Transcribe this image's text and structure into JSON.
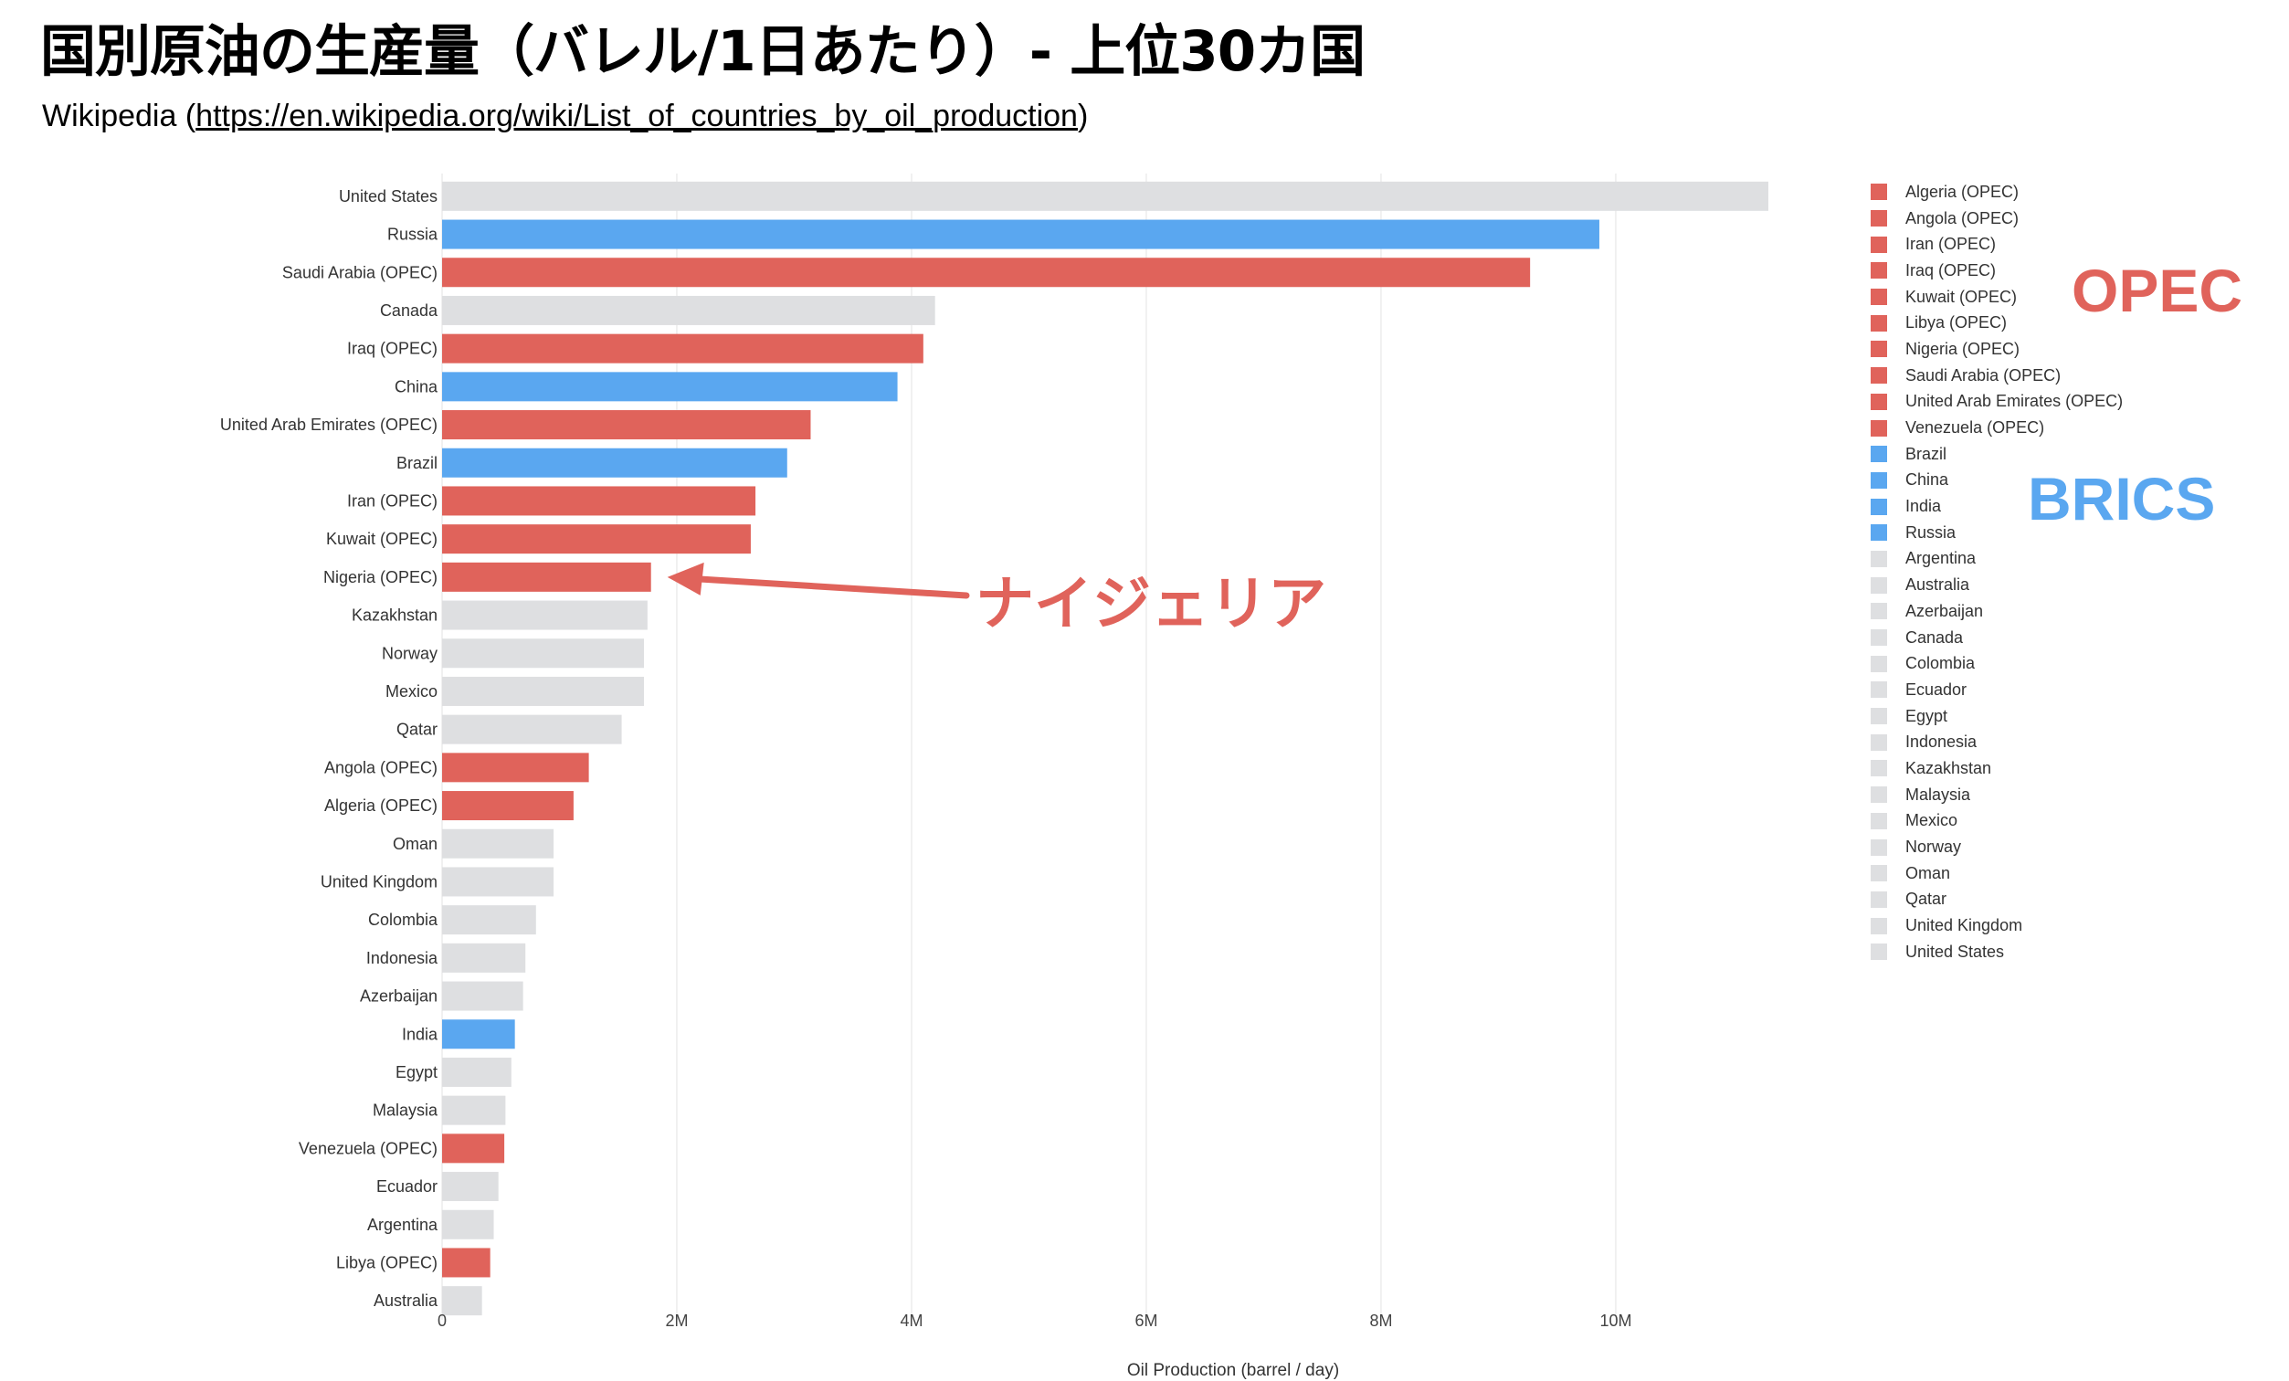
{
  "title": "国別原油の生産量（バレル/1日あたり）- 上位30カ国",
  "source": {
    "prefix": "Wikipedia (",
    "link": "https://en.wikipedia.org/wiki/List_of_countries_by_oil_production",
    "suffix": ")"
  },
  "colors": {
    "opec": "#e0635b",
    "brics": "#5aa7f0",
    "other": "#dedfe1"
  },
  "group_labels": {
    "opec": "OPEC",
    "brics": "BRICS"
  },
  "annotation": {
    "text": "ナイジェリア",
    "target": "Nigeria (OPEC)"
  },
  "chart_data": {
    "type": "bar",
    "orientation": "horizontal",
    "xlabel": "Oil Production (barrel / day)",
    "ylabel": "",
    "xlim": [
      0,
      11300000
    ],
    "x_ticks": [
      0,
      2000000,
      4000000,
      6000000,
      8000000,
      10000000
    ],
    "x_tick_labels": [
      "0",
      "2M",
      "4M",
      "6M",
      "8M",
      "10M"
    ],
    "grid": true,
    "legend_position": "right",
    "bars": [
      {
        "category": "United States",
        "value": 11300000,
        "group": "other"
      },
      {
        "category": "Russia",
        "value": 9860000,
        "group": "brics"
      },
      {
        "category": "Saudi Arabia (OPEC)",
        "value": 9270000,
        "group": "opec"
      },
      {
        "category": "Canada",
        "value": 4200000,
        "group": "other"
      },
      {
        "category": "Iraq (OPEC)",
        "value": 4100000,
        "group": "opec"
      },
      {
        "category": "China",
        "value": 3880000,
        "group": "brics"
      },
      {
        "category": "United Arab Emirates (OPEC)",
        "value": 3140000,
        "group": "opec"
      },
      {
        "category": "Brazil",
        "value": 2940000,
        "group": "brics"
      },
      {
        "category": "Iran (OPEC)",
        "value": 2670000,
        "group": "opec"
      },
      {
        "category": "Kuwait (OPEC)",
        "value": 2630000,
        "group": "opec"
      },
      {
        "category": "Nigeria (OPEC)",
        "value": 1780000,
        "group": "opec"
      },
      {
        "category": "Kazakhstan",
        "value": 1750000,
        "group": "other"
      },
      {
        "category": "Norway",
        "value": 1720000,
        "group": "other"
      },
      {
        "category": "Mexico",
        "value": 1720000,
        "group": "other"
      },
      {
        "category": "Qatar",
        "value": 1530000,
        "group": "other"
      },
      {
        "category": "Angola (OPEC)",
        "value": 1250000,
        "group": "opec"
      },
      {
        "category": "Algeria (OPEC)",
        "value": 1120000,
        "group": "opec"
      },
      {
        "category": "Oman",
        "value": 950000,
        "group": "other"
      },
      {
        "category": "United Kingdom",
        "value": 950000,
        "group": "other"
      },
      {
        "category": "Colombia",
        "value": 800000,
        "group": "other"
      },
      {
        "category": "Indonesia",
        "value": 710000,
        "group": "other"
      },
      {
        "category": "Azerbaijan",
        "value": 690000,
        "group": "other"
      },
      {
        "category": "India",
        "value": 620000,
        "group": "brics"
      },
      {
        "category": "Egypt",
        "value": 590000,
        "group": "other"
      },
      {
        "category": "Malaysia",
        "value": 540000,
        "group": "other"
      },
      {
        "category": "Venezuela (OPEC)",
        "value": 530000,
        "group": "opec"
      },
      {
        "category": "Ecuador",
        "value": 480000,
        "group": "other"
      },
      {
        "category": "Argentina",
        "value": 440000,
        "group": "other"
      },
      {
        "category": "Libya (OPEC)",
        "value": 410000,
        "group": "opec"
      },
      {
        "category": "Australia",
        "value": 340000,
        "group": "other"
      }
    ],
    "legend": [
      {
        "label": "Algeria (OPEC)",
        "group": "opec"
      },
      {
        "label": "Angola (OPEC)",
        "group": "opec"
      },
      {
        "label": "Iran (OPEC)",
        "group": "opec"
      },
      {
        "label": "Iraq (OPEC)",
        "group": "opec"
      },
      {
        "label": "Kuwait (OPEC)",
        "group": "opec"
      },
      {
        "label": "Libya (OPEC)",
        "group": "opec"
      },
      {
        "label": "Nigeria (OPEC)",
        "group": "opec"
      },
      {
        "label": "Saudi Arabia (OPEC)",
        "group": "opec"
      },
      {
        "label": "United Arab Emirates (OPEC)",
        "group": "opec"
      },
      {
        "label": "Venezuela (OPEC)",
        "group": "opec"
      },
      {
        "label": "Brazil",
        "group": "brics"
      },
      {
        "label": "China",
        "group": "brics"
      },
      {
        "label": "India",
        "group": "brics"
      },
      {
        "label": "Russia",
        "group": "brics"
      },
      {
        "label": "Argentina",
        "group": "other"
      },
      {
        "label": "Australia",
        "group": "other"
      },
      {
        "label": "Azerbaijan",
        "group": "other"
      },
      {
        "label": "Canada",
        "group": "other"
      },
      {
        "label": "Colombia",
        "group": "other"
      },
      {
        "label": "Ecuador",
        "group": "other"
      },
      {
        "label": "Egypt",
        "group": "other"
      },
      {
        "label": "Indonesia",
        "group": "other"
      },
      {
        "label": "Kazakhstan",
        "group": "other"
      },
      {
        "label": "Malaysia",
        "group": "other"
      },
      {
        "label": "Mexico",
        "group": "other"
      },
      {
        "label": "Norway",
        "group": "other"
      },
      {
        "label": "Oman",
        "group": "other"
      },
      {
        "label": "Qatar",
        "group": "other"
      },
      {
        "label": "United Kingdom",
        "group": "other"
      },
      {
        "label": "United States",
        "group": "other"
      }
    ]
  }
}
